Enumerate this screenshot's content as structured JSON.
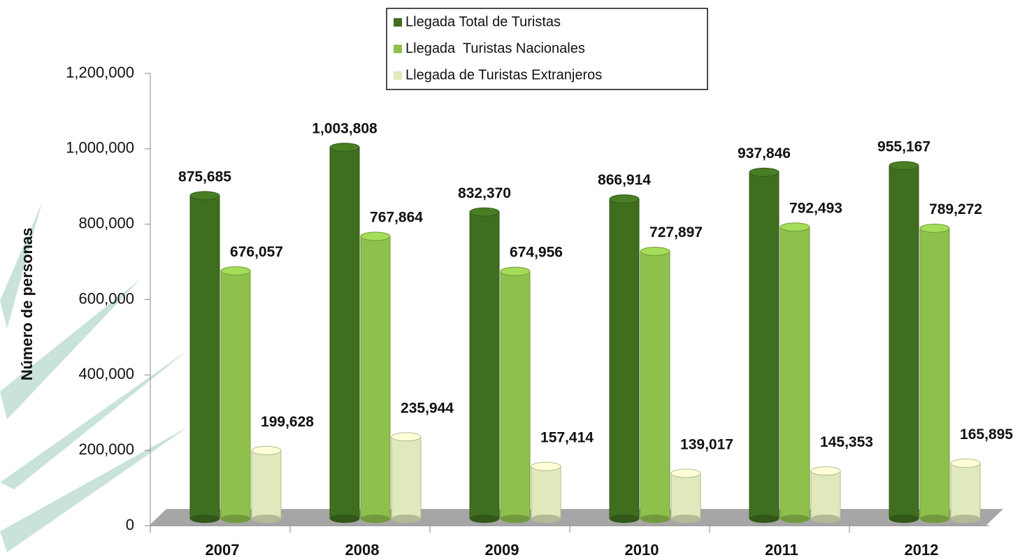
{
  "chart_data": {
    "type": "bar",
    "y_label": "Número de personas",
    "categories": [
      "2007",
      "2008",
      "2009",
      "2010",
      "2011",
      "2012"
    ],
    "series": [
      {
        "name": "Llegada Total de Turistas",
        "color": "#3f6e1f",
        "values": [
          875685,
          1003808,
          832370,
          866914,
          937846,
          955167
        ],
        "value_labels": [
          "875,685",
          "1,003,808",
          "832,370",
          "866,914",
          "937,846",
          "955,167"
        ]
      },
      {
        "name": "Llegada  Turistas Nacionales",
        "color": "#8fc04c",
        "values": [
          676057,
          767864,
          674956,
          727897,
          792493,
          789272
        ],
        "value_labels": [
          "676,057",
          "767,864",
          "674,956",
          "727,897",
          "792,493",
          "789,272"
        ]
      },
      {
        "name": "Llegada de Turistas Extranjeros",
        "color": "#dfe9bb",
        "values": [
          199628,
          235944,
          157414,
          139017,
          145353,
          165895
        ],
        "value_labels": [
          "199,628",
          "235,944",
          "157,414",
          "139,017",
          "145,353",
          "165,895"
        ]
      }
    ],
    "ylim": [
      0,
      1200000
    ],
    "yticks": [
      0,
      {
        "value": 200000,
        "label": "200,000"
      },
      {
        "value": 400000,
        "label": "400,000"
      },
      {
        "value": 600000,
        "label": "600,000"
      },
      {
        "value": 800000,
        "label": "800,000"
      },
      {
        "value": 1000000,
        "label": "1,000,000"
      },
      {
        "value": 1200000,
        "label": "1,200,000"
      }
    ],
    "grid": false,
    "legend": "top"
  }
}
